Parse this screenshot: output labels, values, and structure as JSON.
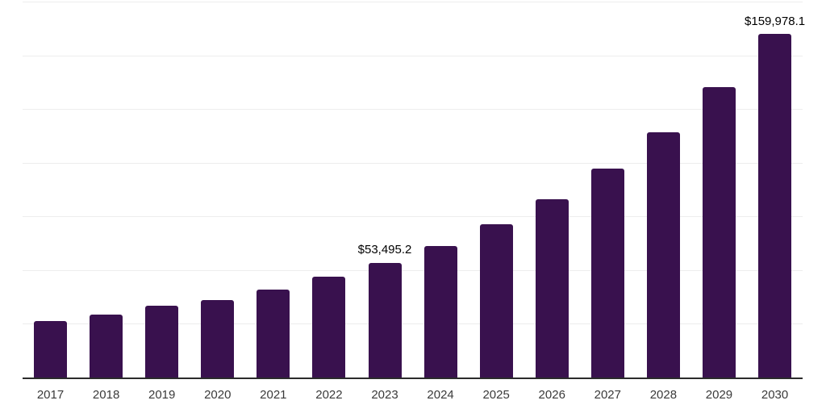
{
  "chart_data": {
    "type": "bar",
    "title": "",
    "xlabel": "",
    "ylabel": "",
    "categories": [
      "2017",
      "2018",
      "2019",
      "2020",
      "2021",
      "2022",
      "2023",
      "2024",
      "2025",
      "2026",
      "2027",
      "2028",
      "2029",
      "2030"
    ],
    "values": [
      26300,
      29400,
      33300,
      35900,
      40800,
      46800,
      53495.2,
      61300,
      71300,
      83000,
      97100,
      114300,
      135300,
      159978.1
    ],
    "data_labels": [
      {
        "category": "2023",
        "text": "$53,495.2"
      },
      {
        "category": "2030",
        "text": "$159,978.1"
      }
    ],
    "ylim": [
      0,
      175000
    ],
    "gridline_interval": 25000,
    "grid": "horizontal",
    "legend": "none",
    "y_tick_labels": "none",
    "colors": {
      "bar": "#39114e",
      "gridline": "#ededed",
      "axis_line": "#2b2b2b",
      "data_label_text": "#000000",
      "x_tick_text": "#3a3a3a",
      "background": "#ffffff"
    }
  }
}
